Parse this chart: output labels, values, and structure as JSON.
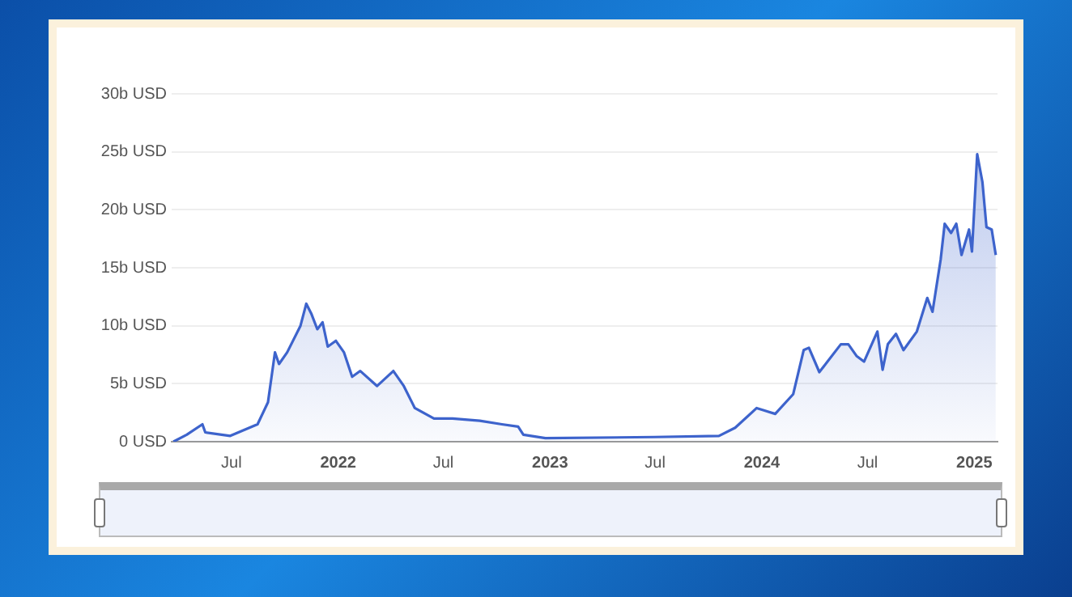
{
  "chart_data": {
    "type": "area",
    "color": "#3d63cc",
    "x": [
      "2021-03-23",
      "2021-04-15",
      "2021-05-12",
      "2021-05-17",
      "2021-06-29",
      "2021-07-13",
      "2021-08-15",
      "2021-09-02",
      "2021-09-14",
      "2021-09-21",
      "2021-10-05",
      "2021-10-28",
      "2021-11-07",
      "2021-11-16",
      "2021-11-26",
      "2021-12-05",
      "2021-12-14",
      "2021-12-28",
      "2022-01-11",
      "2022-01-25",
      "2022-02-08",
      "2022-03-09",
      "2022-04-06",
      "2022-04-24",
      "2022-05-13",
      "2022-06-15",
      "2022-07-17",
      "2022-09-02",
      "2022-10-10",
      "2022-11-07",
      "2022-11-16",
      "2022-12-24",
      "2023-06-30",
      "2023-10-19",
      "2023-11-16",
      "2023-12-23",
      "2024-01-24",
      "2024-02-24",
      "2024-03-13",
      "2024-03-22",
      "2024-04-09",
      "2024-04-23",
      "2024-05-16",
      "2024-05-29",
      "2024-06-12",
      "2024-06-25",
      "2024-07-18",
      "2024-07-27",
      "2024-08-05",
      "2024-08-19",
      "2024-09-01",
      "2024-09-24",
      "2024-10-12",
      "2024-10-21",
      "2024-11-04",
      "2024-11-11",
      "2024-11-22",
      "2024-12-01",
      "2024-12-10",
      "2024-12-23",
      "2024-12-28",
      "2025-01-06",
      "2025-01-15",
      "2025-01-22",
      "2025-01-31",
      "2025-02-07"
    ],
    "values": [
      0,
      0.6,
      1.5,
      0.8,
      0.5,
      0.8,
      1.5,
      3.4,
      7.7,
      6.7,
      7.7,
      10,
      11.9,
      11,
      9.7,
      10.3,
      8.2,
      8.7,
      7.7,
      5.6,
      6.1,
      4.8,
      6.1,
      4.8,
      2.9,
      2,
      2,
      1.8,
      1.5,
      1.3,
      0.6,
      0.3,
      0.4,
      0.5,
      1.2,
      2.9,
      2.4,
      4.1,
      7.9,
      8.1,
      6,
      6.9,
      8.4,
      8.4,
      7.4,
      6.9,
      9.5,
      6.2,
      8.4,
      9.3,
      7.9,
      9.5,
      12.4,
      11.2,
      15.7,
      18.8,
      18,
      18.8,
      16.1,
      18.3,
      16.4,
      24.8,
      22.4,
      18.5,
      18.3,
      16.1
    ],
    "xlim": [
      "2021-03-20",
      "2025-02-10"
    ],
    "xticks": [
      {
        "value": "2021-07-01",
        "label": "Jul"
      },
      {
        "value": "2022-01-01",
        "label": "2022"
      },
      {
        "value": "2022-07-01",
        "label": "Jul"
      },
      {
        "value": "2023-01-01",
        "label": "2023"
      },
      {
        "value": "2023-07-01",
        "label": "Jul"
      },
      {
        "value": "2024-01-01",
        "label": "2024"
      },
      {
        "value": "2024-07-01",
        "label": "Jul"
      },
      {
        "value": "2025-01-01",
        "label": "2025"
      }
    ],
    "ylim": [
      0,
      30
    ],
    "yticks": [
      {
        "value": 0,
        "label": "0 USD"
      },
      {
        "value": 5,
        "label": "5b USD"
      },
      {
        "value": 10,
        "label": "10b USD"
      },
      {
        "value": 15,
        "label": "15b USD"
      },
      {
        "value": 20,
        "label": "20b USD"
      },
      {
        "value": 25,
        "label": "25b USD"
      },
      {
        "value": 30,
        "label": "30b USD"
      }
    ],
    "grid": "y",
    "legend": false
  }
}
